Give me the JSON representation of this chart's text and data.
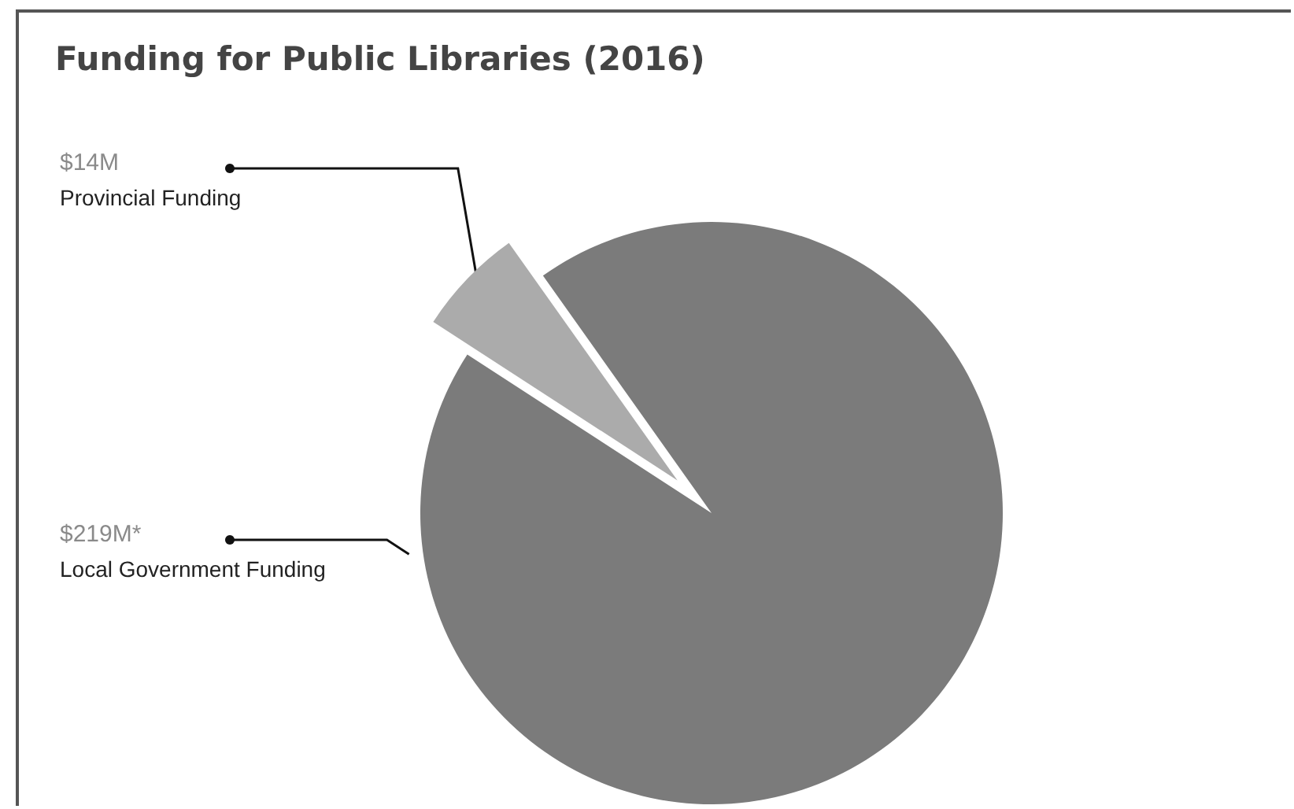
{
  "chart_data": {
    "type": "pie",
    "title": "Funding for Public Libraries (2016)",
    "categories": [
      "Provincial Funding",
      "Local Government Funding"
    ],
    "values": [
      14,
      219
    ],
    "colors": [
      "#ababab",
      "#7b7b7b"
    ],
    "value_labels": [
      "$14M",
      "$219M*"
    ]
  }
}
